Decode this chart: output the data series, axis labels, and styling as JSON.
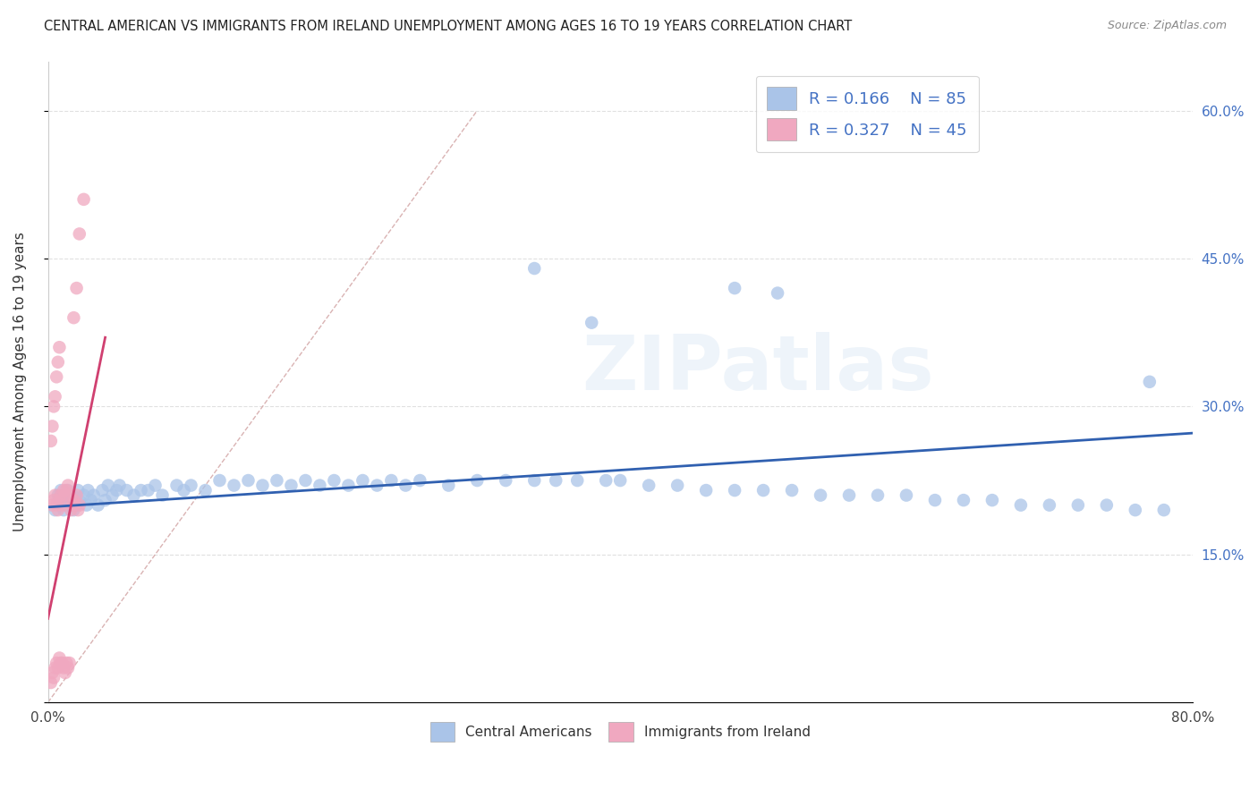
{
  "title": "CENTRAL AMERICAN VS IMMIGRANTS FROM IRELAND UNEMPLOYMENT AMONG AGES 16 TO 19 YEARS CORRELATION CHART",
  "source": "Source: ZipAtlas.com",
  "ylabel": "Unemployment Among Ages 16 to 19 years",
  "xlim": [
    0,
    0.8
  ],
  "ylim": [
    0,
    0.65
  ],
  "blue_color": "#aac4e8",
  "pink_color": "#f0a8c0",
  "blue_line_color": "#3060b0",
  "pink_line_color": "#d04070",
  "diag_color": "#ccaaaa",
  "legend_r1": "0.166",
  "legend_n1": "85",
  "legend_r2": "0.327",
  "legend_n2": "45",
  "watermark": "ZIPatlas",
  "background_color": "#ffffff",
  "grid_color": "#e0e0e0",
  "blue_scatter_x": [
    0.005,
    0.007,
    0.008,
    0.009,
    0.01,
    0.011,
    0.012,
    0.013,
    0.014,
    0.015,
    0.016,
    0.017,
    0.018,
    0.02,
    0.021,
    0.022,
    0.025,
    0.027,
    0.028,
    0.03,
    0.032,
    0.035,
    0.038,
    0.04,
    0.042,
    0.045,
    0.048,
    0.05,
    0.055,
    0.06,
    0.065,
    0.07,
    0.075,
    0.08,
    0.09,
    0.095,
    0.1,
    0.11,
    0.12,
    0.13,
    0.14,
    0.15,
    0.16,
    0.17,
    0.18,
    0.19,
    0.2,
    0.21,
    0.22,
    0.23,
    0.24,
    0.25,
    0.26,
    0.28,
    0.3,
    0.32,
    0.34,
    0.355,
    0.37,
    0.39,
    0.4,
    0.42,
    0.44,
    0.46,
    0.48,
    0.5,
    0.52,
    0.54,
    0.56,
    0.58,
    0.6,
    0.62,
    0.64,
    0.66,
    0.68,
    0.7,
    0.72,
    0.74,
    0.76,
    0.78,
    0.34,
    0.48,
    0.51,
    0.38,
    0.77
  ],
  "blue_scatter_y": [
    0.195,
    0.21,
    0.2,
    0.215,
    0.205,
    0.195,
    0.21,
    0.2,
    0.215,
    0.205,
    0.2,
    0.21,
    0.195,
    0.2,
    0.215,
    0.205,
    0.21,
    0.2,
    0.215,
    0.205,
    0.21,
    0.2,
    0.215,
    0.205,
    0.22,
    0.21,
    0.215,
    0.22,
    0.215,
    0.21,
    0.215,
    0.215,
    0.22,
    0.21,
    0.22,
    0.215,
    0.22,
    0.215,
    0.225,
    0.22,
    0.225,
    0.22,
    0.225,
    0.22,
    0.225,
    0.22,
    0.225,
    0.22,
    0.225,
    0.22,
    0.225,
    0.22,
    0.225,
    0.22,
    0.225,
    0.225,
    0.225,
    0.225,
    0.225,
    0.225,
    0.225,
    0.22,
    0.22,
    0.215,
    0.215,
    0.215,
    0.215,
    0.21,
    0.21,
    0.21,
    0.21,
    0.205,
    0.205,
    0.205,
    0.2,
    0.2,
    0.2,
    0.2,
    0.195,
    0.195,
    0.44,
    0.42,
    0.415,
    0.385,
    0.325
  ],
  "pink_scatter_x": [
    0.002,
    0.003,
    0.004,
    0.005,
    0.006,
    0.007,
    0.008,
    0.009,
    0.01,
    0.011,
    0.012,
    0.013,
    0.014,
    0.015,
    0.016,
    0.017,
    0.018,
    0.019,
    0.02,
    0.021,
    0.022,
    0.003,
    0.004,
    0.005,
    0.006,
    0.007,
    0.008,
    0.009,
    0.01,
    0.011,
    0.012,
    0.013,
    0.014,
    0.015,
    0.002,
    0.003,
    0.004,
    0.005,
    0.006,
    0.007,
    0.008,
    0.018,
    0.02,
    0.022,
    0.025
  ],
  "pink_scatter_y": [
    0.02,
    0.03,
    0.025,
    0.035,
    0.04,
    0.035,
    0.045,
    0.04,
    0.04,
    0.035,
    0.03,
    0.04,
    0.035,
    0.04,
    0.195,
    0.2,
    0.205,
    0.2,
    0.21,
    0.195,
    0.2,
    0.2,
    0.205,
    0.21,
    0.2,
    0.195,
    0.205,
    0.21,
    0.2,
    0.215,
    0.21,
    0.215,
    0.22,
    0.21,
    0.265,
    0.28,
    0.3,
    0.31,
    0.33,
    0.345,
    0.36,
    0.39,
    0.42,
    0.475,
    0.51
  ],
  "blue_trend": [
    0.0,
    0.8,
    0.198,
    0.273
  ],
  "pink_trend": [
    0.0,
    0.04,
    0.085,
    0.37
  ],
  "diag_line": [
    0.0,
    0.3,
    0.0,
    0.6
  ]
}
